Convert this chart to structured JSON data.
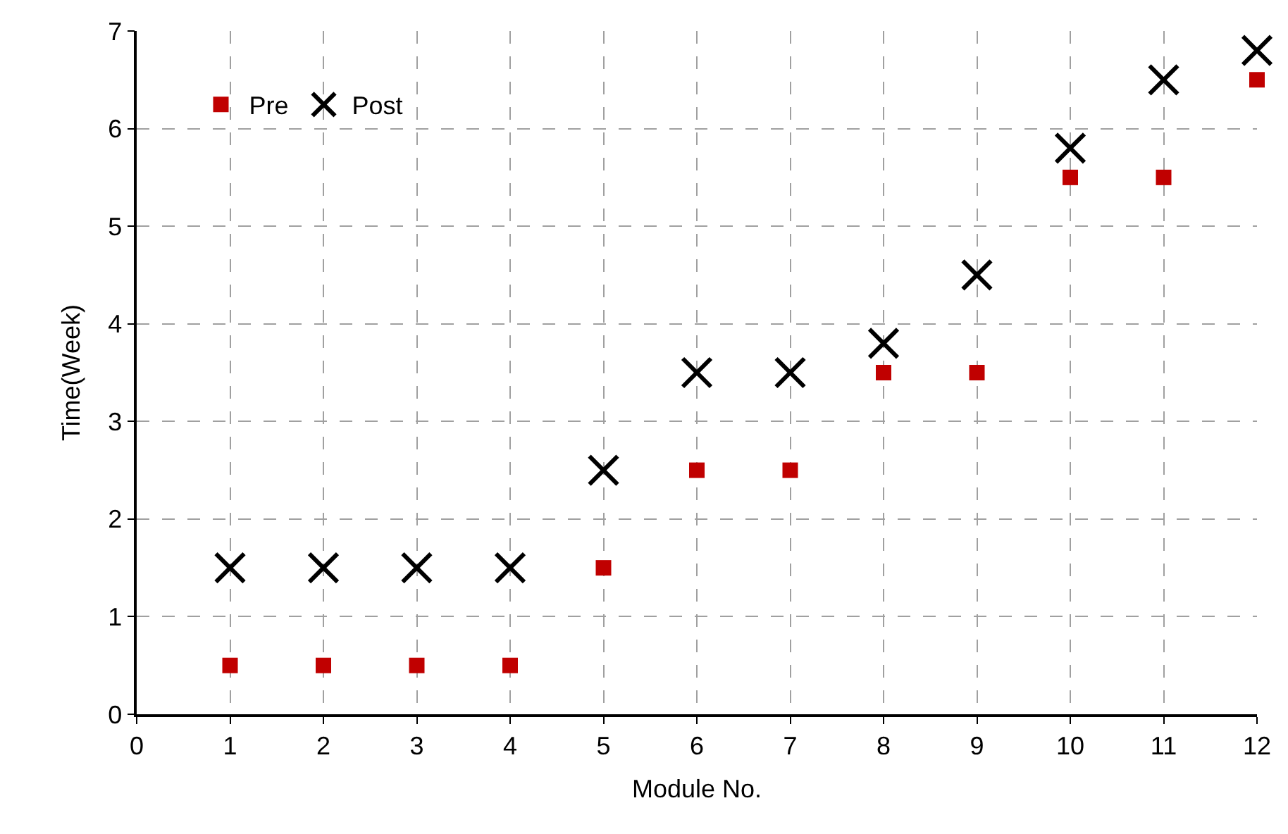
{
  "chart_data": {
    "type": "scatter",
    "xlabel": "Module No.",
    "ylabel": "Time(Week)",
    "x": [
      1,
      2,
      3,
      4,
      5,
      6,
      7,
      8,
      9,
      10,
      11,
      12
    ],
    "series": [
      {
        "name": "Pre",
        "color": "#c00000",
        "marker": "square",
        "values": [
          0.5,
          0.5,
          0.5,
          0.5,
          1.5,
          2.5,
          2.5,
          3.5,
          3.5,
          5.5,
          5.5,
          6.5
        ]
      },
      {
        "name": "Post",
        "color": "#000000",
        "marker": "cross",
        "values": [
          1.5,
          1.5,
          1.5,
          1.5,
          2.5,
          3.5,
          3.5,
          3.8,
          4.5,
          5.8,
          6.5,
          6.8
        ]
      }
    ],
    "xlim": [
      0,
      12
    ],
    "xticks": [
      0,
      1,
      2,
      3,
      4,
      5,
      6,
      7,
      8,
      9,
      10,
      11,
      12
    ],
    "ylim": [
      0,
      7
    ],
    "yticks": [
      0,
      1,
      2,
      3,
      4,
      5,
      6,
      7
    ],
    "grid": true,
    "legend": "top left"
  }
}
